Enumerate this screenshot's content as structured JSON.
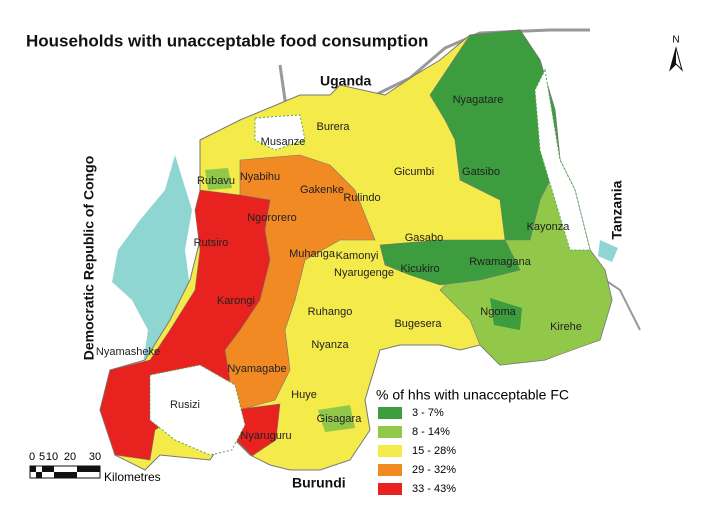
{
  "title": "Households with unacceptable food consumption",
  "north_arrow": "N",
  "neighbors": {
    "uganda": "Uganda",
    "drc": "Democratic Republic of Congo",
    "tanzania": "Tanzania",
    "burundi": "Burundi"
  },
  "districts": [
    "Nyagatare",
    "Burera",
    "Musanze",
    "Gicumbi",
    "Gatsibo",
    "Rubavu",
    "Nyabihu",
    "Gakenke",
    "Rulindo",
    "Ngororero",
    "Rutsiro",
    "Kayonza",
    "Gasabo",
    "Muhanga",
    "Kamonyi",
    "Nyarugenge",
    "Kicukiro",
    "Rwamagana",
    "Karongi",
    "Ruhango",
    "Bugesera",
    "Ngoma",
    "Kirehe",
    "Nyanza",
    "Nyamasheke",
    "Nyamagabe",
    "Huye",
    "Rusizi",
    "Gisagara",
    "Nyaruguru"
  ],
  "legend": {
    "title": "% of hhs with unacceptable FC",
    "items": [
      {
        "label": "3 - 7%",
        "color": "#3d9c3d"
      },
      {
        "label": "8 - 14%",
        "color": "#92c84a"
      },
      {
        "label": "15 - 28%",
        "color": "#f4ea4a"
      },
      {
        "label": "29 - 32%",
        "color": "#f28a24"
      },
      {
        "label": "33 - 43%",
        "color": "#e8231f"
      }
    ]
  },
  "scale_bar": {
    "ticks": [
      0,
      5,
      10,
      20,
      30
    ],
    "unit": "Kilometres"
  }
}
